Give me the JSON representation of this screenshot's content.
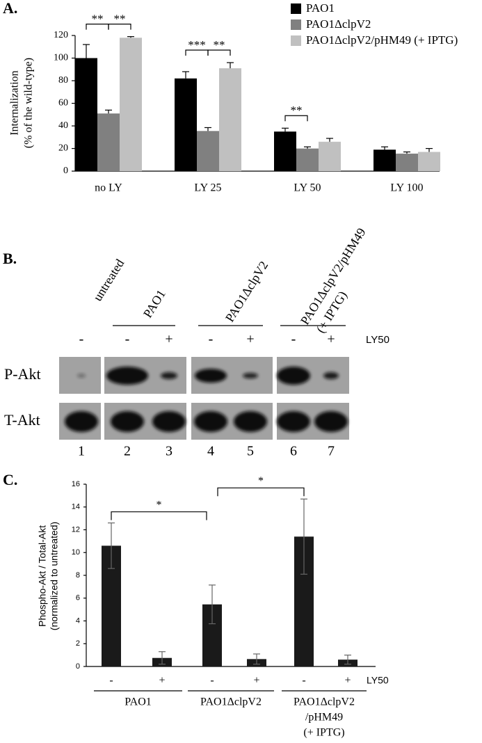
{
  "chart_data": [
    {
      "type": "bar",
      "label": "A.",
      "y_label": [
        "Internalization",
        "(% of the wild-type)"
      ],
      "categories": [
        "no LY",
        "LY 25",
        "LY 50",
        "LY 100"
      ],
      "series": [
        {
          "name": "PAO1",
          "color": "#000000",
          "values": [
            100,
            82,
            35,
            19
          ],
          "errors": [
            12,
            6,
            3,
            2.5
          ]
        },
        {
          "name": "PAO1ΔclpV2",
          "color": "#808080",
          "values": [
            51,
            35.5,
            20,
            15.5
          ],
          "errors": [
            3,
            3,
            1.5,
            1.5
          ]
        },
        {
          "name": "PAO1ΔclpV2/pHM49 (+ IPTG)",
          "color": "#c0c0c0",
          "values": [
            118,
            91,
            26,
            17
          ],
          "errors": [
            1,
            5,
            3,
            3
          ]
        }
      ],
      "ylim": [
        0,
        120
      ],
      "yticks": [
        0,
        20,
        40,
        60,
        80,
        100,
        120
      ],
      "annotations": [
        {
          "text": "**",
          "group": 0,
          "pair": [
            0,
            1
          ]
        },
        {
          "text": "**",
          "group": 0,
          "pair": [
            1,
            2
          ]
        },
        {
          "text": "***",
          "group": 1,
          "pair": [
            0,
            1
          ]
        },
        {
          "text": "**",
          "group": 1,
          "pair": [
            1,
            2
          ]
        },
        {
          "text": "**",
          "group": 2,
          "pair": [
            0,
            1
          ]
        }
      ]
    },
    {
      "type": "bar",
      "label": "C.",
      "y_label": [
        "Phospho-Akt / Total-Akt",
        "(normalized to untreated)"
      ],
      "categories": [
        "-",
        "+",
        "-",
        "+",
        "-",
        "+"
      ],
      "treatment_label": "LY50",
      "groups": [
        {
          "lines": [
            "PAO1"
          ]
        },
        {
          "lines": [
            "PAO1ΔclpV2"
          ]
        },
        {
          "lines": [
            "PAO1ΔclpV2",
            "/pHM49",
            "(+ IPTG)"
          ]
        }
      ],
      "color": "#1a1a1a",
      "values": [
        10.6,
        0.75,
        5.45,
        0.65,
        11.4,
        0.6
      ],
      "errors": [
        2,
        0.55,
        1.7,
        0.45,
        3.3,
        0.4
      ],
      "ylim": [
        0,
        16
      ],
      "yticks": [
        0,
        2,
        4,
        6,
        8,
        10,
        12,
        14,
        16
      ],
      "annotations": [
        {
          "text": "*",
          "pair": [
            0,
            2
          ]
        },
        {
          "text": "*",
          "pair": [
            2,
            4
          ]
        }
      ]
    }
  ],
  "blot": {
    "label": "B.",
    "columns": [
      [
        "untreated"
      ],
      [
        "PAO1"
      ],
      [
        "PAO1ΔclpV2"
      ],
      [
        "PAO1ΔclpV2/pHM49",
        "(+ IPTG)"
      ]
    ],
    "signs": [
      "-",
      "-",
      "+",
      "-",
      "+",
      "-",
      "+"
    ],
    "treatment_label": "LY50",
    "rows": [
      "P-Akt",
      "T-Akt"
    ],
    "lanes": [
      "1",
      "2",
      "3",
      "4",
      "5",
      "6",
      "7"
    ]
  }
}
